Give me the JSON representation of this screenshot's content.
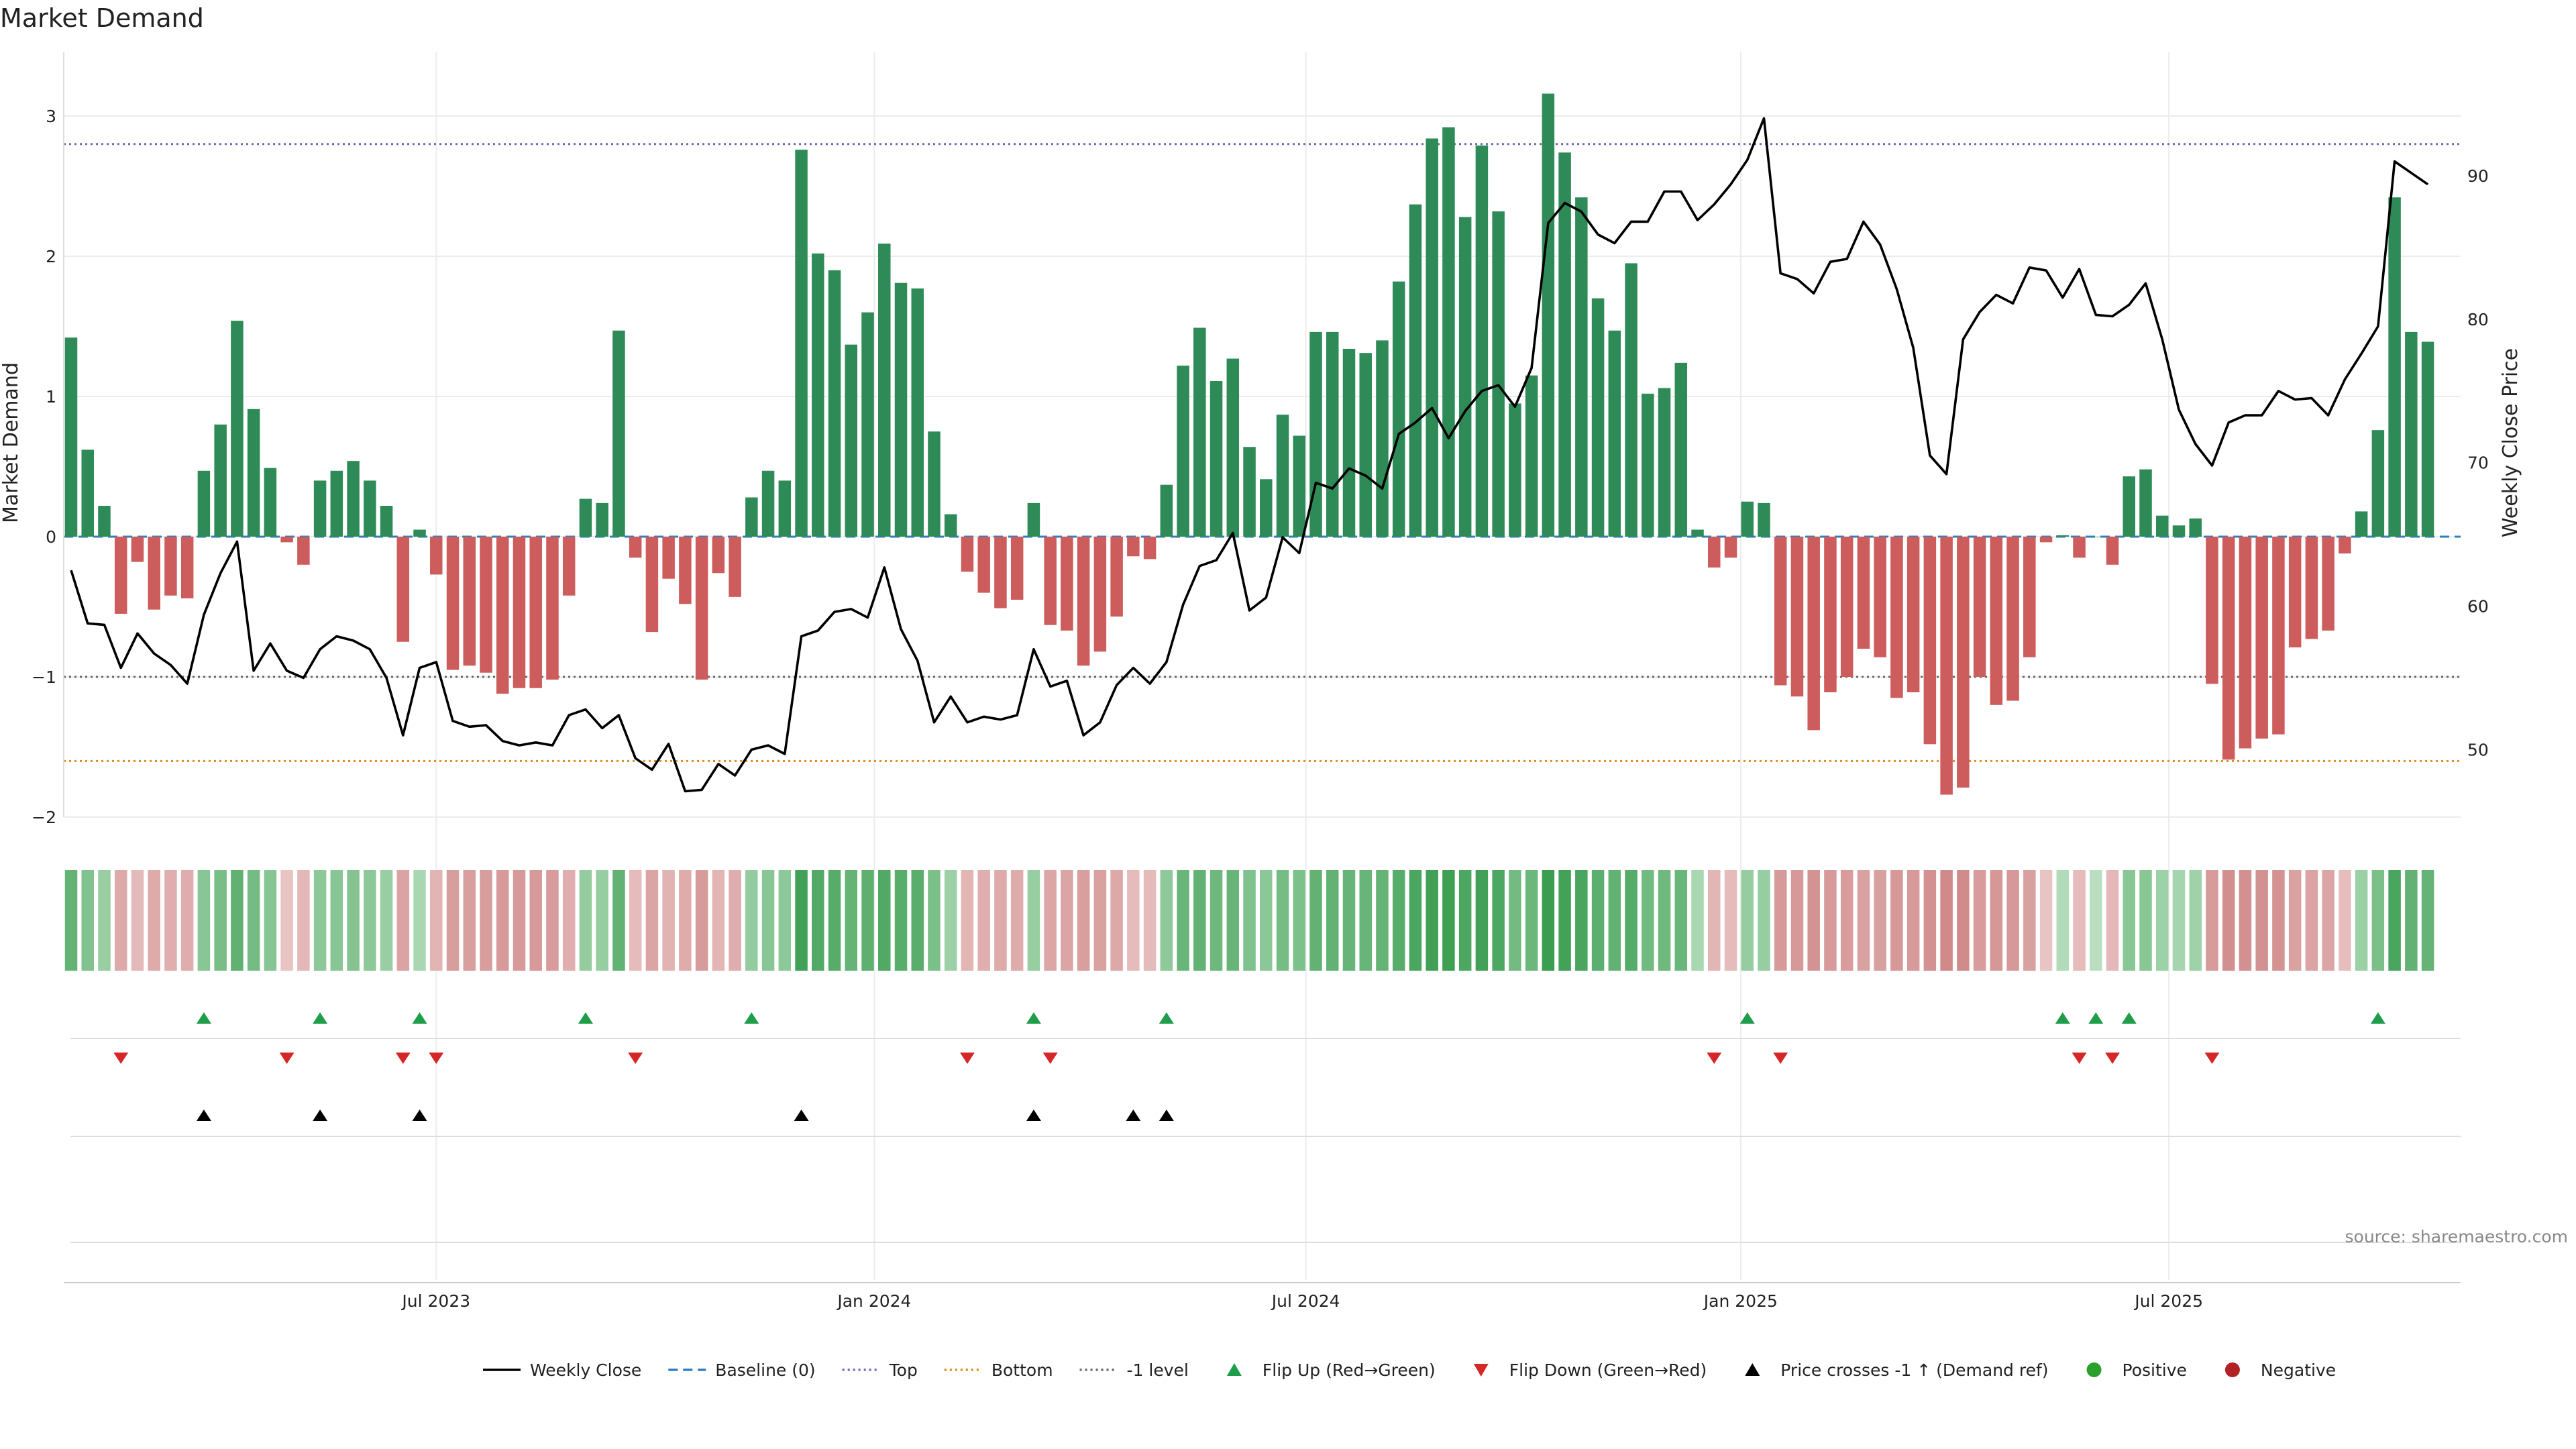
{
  "chart_data": {
    "type": "bar",
    "title": "Market Demand",
    "ylabel": "Market Demand",
    "y2label": "Weekly Close Price",
    "ylim": [
      -2.4,
      3.45
    ],
    "y2lim": [
      45.3,
      98.6
    ],
    "yticks": [
      -2,
      -1,
      0,
      1,
      2,
      3
    ],
    "y2ticks": [
      50,
      60,
      70,
      80,
      90
    ],
    "xticks": [
      "Jul 2023",
      "Jan 2024",
      "Jul 2024",
      "Jan 2025",
      "Jul 2025"
    ],
    "xtick_weeks": [
      22,
      48.4,
      74.4,
      100.6,
      126.4
    ],
    "reference_lines": {
      "top": 2.8,
      "bottom": -1.6,
      "minus_one": -1,
      "baseline": 0
    },
    "colors": {
      "positive": "#2e8b57",
      "negative": "#cd5c5c",
      "price": "#000000",
      "top_line": "#6a6ab5",
      "bottom_line": "#e08a1e",
      "minus_one_line": "#666666",
      "baseline_line": "#2f7fc1",
      "flip_up": "#1f9d4a",
      "flip_down": "#d62728",
      "cross": "#000000",
      "legend_positive": "#2ca02c",
      "legend_negative": "#b22222"
    },
    "series": [
      {
        "name": "Market Demand",
        "type": "bar",
        "values": [
          1.42,
          0.62,
          0.22,
          -0.55,
          -0.18,
          -0.52,
          -0.42,
          -0.44,
          0.47,
          0.8,
          1.54,
          0.91,
          0.49,
          -0.04,
          -0.2,
          0.4,
          0.47,
          0.54,
          0.4,
          0.22,
          -0.75,
          0.05,
          -0.27,
          -0.95,
          -0.92,
          -0.97,
          -1.12,
          -1.08,
          -1.08,
          -1.02,
          -0.42,
          0.27,
          0.24,
          1.47,
          -0.15,
          -0.68,
          -0.3,
          -0.48,
          -1.02,
          -0.26,
          -0.43,
          0.28,
          0.47,
          0.4,
          2.76,
          2.02,
          1.9,
          1.37,
          1.6,
          2.09,
          1.81,
          1.77,
          0.75,
          0.16,
          -0.25,
          -0.4,
          -0.51,
          -0.45,
          0.24,
          -0.63,
          -0.67,
          -0.92,
          -0.82,
          -0.57,
          -0.14,
          -0.16,
          0.37,
          1.22,
          1.49,
          1.11,
          1.27,
          0.64,
          0.41,
          0.87,
          0.72,
          1.46,
          1.46,
          1.34,
          1.31,
          1.4,
          1.82,
          2.37,
          2.84,
          2.92,
          2.28,
          2.79,
          2.32,
          0.95,
          1.15,
          3.16,
          2.74,
          2.42,
          1.7,
          1.47,
          1.95,
          1.02,
          1.06,
          1.24,
          0.05,
          -0.22,
          -0.15,
          0.25,
          0.24,
          -1.06,
          -1.14,
          -1.38,
          -1.11,
          -1.0,
          -0.8,
          -0.86,
          -1.15,
          -1.11,
          -1.48,
          -1.84,
          -1.79,
          -1.0,
          -1.2,
          -1.17,
          -0.86,
          -0.04,
          0.01,
          -0.15,
          0.0,
          -0.2,
          0.43,
          0.48,
          0.15,
          0.08,
          0.13,
          -1.05,
          -1.59,
          -1.51,
          -1.44,
          -1.41,
          -0.79,
          -0.73,
          -0.67,
          -0.12,
          0.18,
          0.76,
          2.42,
          1.46,
          1.39
        ]
      },
      {
        "name": "Weekly Close",
        "type": "line",
        "axis": "right",
        "values": [
          62.5,
          58.8,
          58.7,
          55.7,
          58.1,
          56.7,
          55.9,
          54.6,
          59.4,
          62.3,
          64.5,
          55.5,
          57.4,
          55.5,
          55.0,
          57.0,
          57.9,
          57.6,
          57.0,
          55.0,
          51.0,
          55.7,
          56.1,
          52.0,
          51.6,
          51.7,
          50.6,
          50.3,
          50.5,
          50.3,
          52.4,
          52.8,
          51.5,
          52.4,
          49.4,
          48.6,
          50.4,
          47.1,
          47.2,
          49.0,
          48.2,
          50.0,
          50.3,
          49.7,
          57.9,
          58.3,
          59.6,
          59.8,
          59.2,
          62.7,
          58.4,
          56.2,
          51.9,
          53.7,
          51.9,
          52.3,
          52.1,
          52.4,
          57.0,
          54.4,
          54.8,
          51.0,
          51.9,
          54.5,
          55.7,
          54.6,
          56.1,
          60.1,
          62.8,
          63.2,
          65.1,
          59.7,
          60.6,
          64.8,
          63.7,
          68.6,
          68.2,
          69.6,
          69.1,
          68.2,
          72.0,
          72.8,
          73.8,
          71.7,
          73.6,
          75.0,
          75.4,
          73.9,
          76.6,
          86.7,
          88.1,
          87.5,
          85.9,
          85.3,
          86.8,
          86.8,
          88.9,
          88.9,
          86.9,
          88.0,
          89.4,
          91.1,
          94.0,
          83.2,
          82.8,
          81.8,
          84.0,
          84.2,
          86.8,
          85.2,
          82.1,
          78.0,
          70.5,
          69.2,
          78.6,
          80.5,
          81.7,
          81.1,
          83.6,
          83.4,
          81.5,
          83.5,
          80.3,
          80.2,
          81.0,
          82.5,
          78.6,
          73.7,
          71.3,
          69.8,
          72.8,
          73.3,
          73.3,
          75.0,
          74.4,
          74.5,
          73.3,
          75.8,
          77.6,
          79.5,
          91.0,
          90.2,
          89.4
        ]
      }
    ],
    "heatmap_row": {
      "description": "Color strip encoding Market Demand sign and magnitude per week"
    },
    "markers": {
      "flip_up_weeks": [
        8,
        15,
        21,
        31,
        41,
        58,
        66,
        101,
        120,
        122,
        124,
        139
      ],
      "flip_down_weeks": [
        3,
        13,
        20,
        22,
        34,
        54,
        59,
        99,
        103,
        121,
        123,
        129
      ],
      "price_cross_weeks": [
        8,
        15,
        21,
        44,
        58,
        64,
        66
      ]
    },
    "legend": [
      {
        "label": "Weekly Close",
        "kind": "line-solid",
        "color": "#000000"
      },
      {
        "label": "Baseline (0)",
        "kind": "line-dash",
        "color": "#2f7fc1"
      },
      {
        "label": "Top",
        "kind": "line-dot",
        "color": "#6a6ab5"
      },
      {
        "label": "Bottom",
        "kind": "line-dot",
        "color": "#e08a1e"
      },
      {
        "label": "-1 level",
        "kind": "line-dot",
        "color": "#666666"
      },
      {
        "label": "Flip Up (Red→Green)",
        "kind": "tri-up",
        "color": "#1f9d4a"
      },
      {
        "label": "Flip Down (Green→Red)",
        "kind": "tri-down",
        "color": "#d62728"
      },
      {
        "label": "Price crosses -1 ↑ (Demand ref)",
        "kind": "tri-up",
        "color": "#000000"
      },
      {
        "label": "Positive",
        "kind": "dot",
        "color": "#2ca02c"
      },
      {
        "label": "Negative",
        "kind": "dot",
        "color": "#b22222"
      }
    ],
    "source": "source: sharemaestro.com"
  }
}
